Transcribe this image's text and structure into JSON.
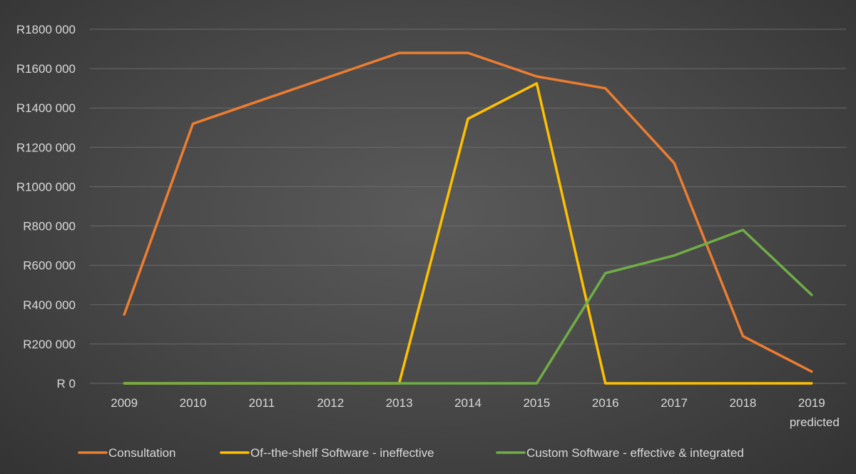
{
  "chart_data": {
    "type": "line",
    "title": "",
    "xlabel": "",
    "ylabel": "",
    "categories": [
      "2009",
      "2010",
      "2011",
      "2012",
      "2013",
      "2014",
      "2015",
      "2016",
      "2017",
      "2018",
      "2019"
    ],
    "category_sublabels": [
      "",
      "",
      "",
      "",
      "",
      "",
      "",
      "",
      "",
      "",
      "predicted"
    ],
    "y_ticks": [
      "R 0",
      "R200 000",
      "R400 000",
      "R600 000",
      "R800 000",
      "R1000 000",
      "R1200 000",
      "R1400 000",
      "R1600 000",
      "R1800 000"
    ],
    "ylim": [
      0,
      1800000
    ],
    "y_step": 200000,
    "grid": true,
    "legend_position": "bottom",
    "series": [
      {
        "name": "Consultation",
        "color": "#ed7d31",
        "values": [
          350000,
          1320000,
          1440000,
          1560000,
          1680000,
          1680000,
          1560000,
          1500000,
          1120000,
          240000,
          60000
        ]
      },
      {
        "name": "Of--the-shelf Software - ineffective",
        "color": "#ffc000",
        "values": [
          0,
          0,
          0,
          0,
          0,
          1345000,
          1525000,
          0,
          0,
          0,
          0
        ]
      },
      {
        "name": "Custom Software - effective & integrated",
        "color": "#70ad47",
        "values": [
          0,
          0,
          0,
          0,
          0,
          0,
          0,
          560000,
          650000,
          780000,
          450000
        ]
      }
    ]
  }
}
